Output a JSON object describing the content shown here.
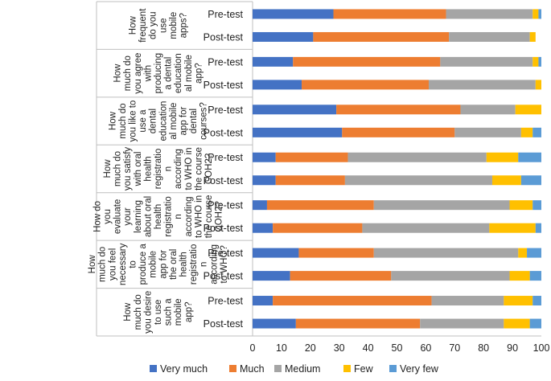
{
  "chart_data": {
    "type": "bar",
    "orientation": "horizontal",
    "stacked": true,
    "xlim": [
      0,
      100
    ],
    "x_ticks": [
      "0",
      "10",
      "20",
      "30",
      "40",
      "50",
      "60",
      "70",
      "80",
      "90",
      "100"
    ],
    "grid": false,
    "legend_position": "bottom",
    "colors": [
      "#4472C4",
      "#ED7D31",
      "#A5A5A5",
      "#FFC000",
      "#5B9BD5"
    ],
    "series_names": [
      "Very much",
      "Much",
      "Medium",
      "Few",
      "Very few"
    ],
    "groups": [
      {
        "question_lines": [
          "How",
          "frequent",
          "do you",
          "use",
          "mobile",
          "apps?"
        ],
        "rows": [
          {
            "label": "Pre-test",
            "values": [
              28,
              39,
              30,
              2,
              1
            ]
          },
          {
            "label": "Post-test",
            "values": [
              21,
              47,
              28,
              2,
              0
            ]
          }
        ]
      },
      {
        "question_lines": [
          "How",
          "much do",
          "you agree",
          "with",
          "producing",
          "a dental",
          "education",
          "al mobile",
          "app?"
        ],
        "rows": [
          {
            "label": "Pre-test",
            "values": [
              14,
              51,
              32,
              2,
              1
            ]
          },
          {
            "label": "Post-test",
            "values": [
              17,
              44,
              37,
              2,
              0
            ]
          }
        ]
      },
      {
        "question_lines": [
          "How",
          "much do",
          "you like to",
          "use a",
          "dental",
          "education",
          "al mobile",
          "app for",
          "dental",
          "courses?"
        ],
        "rows": [
          {
            "label": "Pre-test",
            "values": [
              29,
              43,
              19,
              9,
              0
            ]
          },
          {
            "label": "Post-test",
            "values": [
              31,
              39,
              23,
              4,
              3
            ]
          }
        ]
      },
      {
        "question_lines": [
          "How",
          "much do",
          "you satisfy",
          "with oral",
          "health",
          "registratio",
          "n",
          "according",
          "to WHO in",
          "the course",
          "COH2?"
        ],
        "rows": [
          {
            "label": "Pre-test",
            "values": [
              8,
              25,
              48,
              11,
              8
            ]
          },
          {
            "label": "Post-test",
            "values": [
              8,
              24,
              51,
              10,
              7
            ]
          }
        ]
      },
      {
        "question_lines": [
          "How do",
          "you",
          "evaluate",
          "your",
          "learning",
          "about oral",
          "health",
          "registratio",
          "n",
          "according",
          "to WHO in",
          "the course",
          "COH2?"
        ],
        "rows": [
          {
            "label": "Pre-test",
            "values": [
              5,
              37,
              47,
              8,
              3
            ]
          },
          {
            "label": "Post-test",
            "values": [
              7,
              31,
              44,
              16,
              2
            ]
          }
        ]
      },
      {
        "question_lines": [
          "How",
          "much do",
          "you feel",
          "necessary",
          "to",
          "produce a",
          "mobile",
          "app for",
          "the oral",
          "health",
          "registratio",
          "n",
          "according",
          "to WHO?"
        ],
        "rows": [
          {
            "label": "Pre-test",
            "values": [
              16,
              26,
              50,
              3,
              5
            ]
          },
          {
            "label": "Post-test",
            "values": [
              13,
              35,
              41,
              7,
              4
            ]
          }
        ]
      },
      {
        "question_lines": [
          "How",
          "much do",
          "you desire",
          "to use",
          "such a",
          "mobile",
          "app?"
        ],
        "rows": [
          {
            "label": "Pre-test",
            "values": [
              7,
              55,
              25,
              10,
              3
            ]
          },
          {
            "label": "Post-test",
            "values": [
              15,
              43,
              29,
              9,
              4
            ]
          }
        ]
      }
    ]
  }
}
